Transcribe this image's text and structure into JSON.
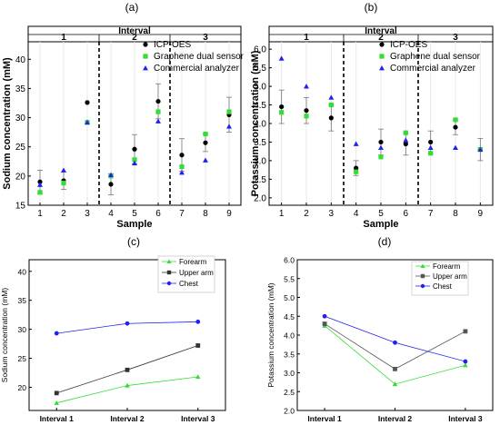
{
  "chart_data": [
    {
      "panel": "(a)",
      "type": "scatter",
      "header": "Interval",
      "interval_labels": [
        "1",
        "2",
        "3"
      ],
      "xlabel": "Sample",
      "ylabel": "Sodium concentration (mM)",
      "x": [
        1,
        2,
        3,
        4,
        5,
        6,
        7,
        8,
        9
      ],
      "xlim": [
        0.5,
        9.5
      ],
      "ylim": [
        15,
        43
      ],
      "yticks": [
        15,
        20,
        25,
        30,
        35,
        40
      ],
      "legend_position": "top-right",
      "series": [
        {
          "name": "ICP-OES",
          "marker": "circle",
          "color": "#000000",
          "values": [
            19.0,
            19.2,
            32.6,
            18.6,
            24.6,
            32.8,
            23.6,
            25.7,
            30.5
          ],
          "err": [
            2.0,
            1.5,
            null,
            1.8,
            2.5,
            3.0,
            2.8,
            1.5,
            3.0
          ]
        },
        {
          "name": "Graphene dual sensor",
          "marker": "square",
          "color": "#33dd33",
          "values": [
            17.2,
            18.8,
            29.2,
            20.0,
            22.8,
            31.0,
            21.6,
            27.2,
            31.0
          ]
        },
        {
          "name": "Commercial analyzer",
          "marker": "triangle",
          "color": "#2222ee",
          "values": [
            18.5,
            21.0,
            29.2,
            20.2,
            22.2,
            29.4,
            20.6,
            22.7,
            28.5
          ]
        }
      ]
    },
    {
      "panel": "(b)",
      "type": "scatter",
      "header": "Interval",
      "interval_labels": [
        "1",
        "2",
        "3"
      ],
      "xlabel": "Sample",
      "ylabel": "Potassium concentration (mM)",
      "x": [
        1,
        2,
        3,
        4,
        5,
        6,
        7,
        8,
        9
      ],
      "xlim": [
        0.5,
        9.5
      ],
      "ylim": [
        1.8,
        6.2
      ],
      "yticks": [
        2.0,
        2.5,
        3.0,
        3.5,
        4.0,
        4.5,
        5.0,
        5.5,
        6.0
      ],
      "legend_position": "top-right",
      "series": [
        {
          "name": "ICP-OES",
          "marker": "circle",
          "color": "#000000",
          "values": [
            4.45,
            4.35,
            4.15,
            2.8,
            3.5,
            3.45,
            3.5,
            3.9,
            3.3
          ],
          "err": [
            0.45,
            0.35,
            0.35,
            0.2,
            0.35,
            0.3,
            0.3,
            0.2,
            0.3
          ]
        },
        {
          "name": "Graphene dual sensor",
          "marker": "square",
          "color": "#33dd33",
          "values": [
            4.3,
            4.2,
            4.5,
            2.7,
            3.1,
            3.75,
            3.2,
            4.1,
            3.3
          ]
        },
        {
          "name": "Commercial analyzer",
          "marker": "triangle",
          "color": "#2222ee",
          "values": [
            5.75,
            5.0,
            4.7,
            3.45,
            3.35,
            3.55,
            3.35,
            3.35,
            3.3
          ]
        }
      ]
    },
    {
      "panel": "(c)",
      "type": "line",
      "xlabel": "",
      "ylabel": "Sodium concentration (mM)",
      "categories": [
        "Interval 1",
        "Interval 2",
        "Interval 3"
      ],
      "ylim": [
        16,
        42
      ],
      "yticks": [
        20,
        25,
        30,
        35,
        40
      ],
      "legend_position": "top-right",
      "series": [
        {
          "name": "Forearm",
          "marker": "triangle",
          "color": "#33dd33",
          "values": [
            17.3,
            20.3,
            21.8
          ]
        },
        {
          "name": "Upper arm",
          "marker": "square",
          "color": "#333333",
          "values": [
            19.0,
            23.0,
            27.2
          ]
        },
        {
          "name": "Chest",
          "marker": "circle",
          "color": "#2222ee",
          "values": [
            29.3,
            31.0,
            31.3
          ]
        }
      ]
    },
    {
      "panel": "(d)",
      "type": "line",
      "xlabel": "",
      "ylabel": "Potassium concentration (mM)",
      "categories": [
        "Interval 1",
        "Interval 2",
        "Interval 3"
      ],
      "ylim": [
        2.0,
        6.0
      ],
      "yticks": [
        2.0,
        2.5,
        3.0,
        3.5,
        4.0,
        4.5,
        5.0,
        5.5,
        6.0
      ],
      "legend_position": "top-right",
      "series": [
        {
          "name": "Forearm",
          "marker": "triangle",
          "color": "#33dd33",
          "values": [
            4.25,
            2.7,
            3.2
          ]
        },
        {
          "name": "Upper arm",
          "marker": "square",
          "color": "#555555",
          "values": [
            4.3,
            3.1,
            4.1
          ]
        },
        {
          "name": "Chest",
          "marker": "circle",
          "color": "#2222ee",
          "values": [
            4.5,
            3.8,
            3.3
          ]
        }
      ]
    }
  ]
}
